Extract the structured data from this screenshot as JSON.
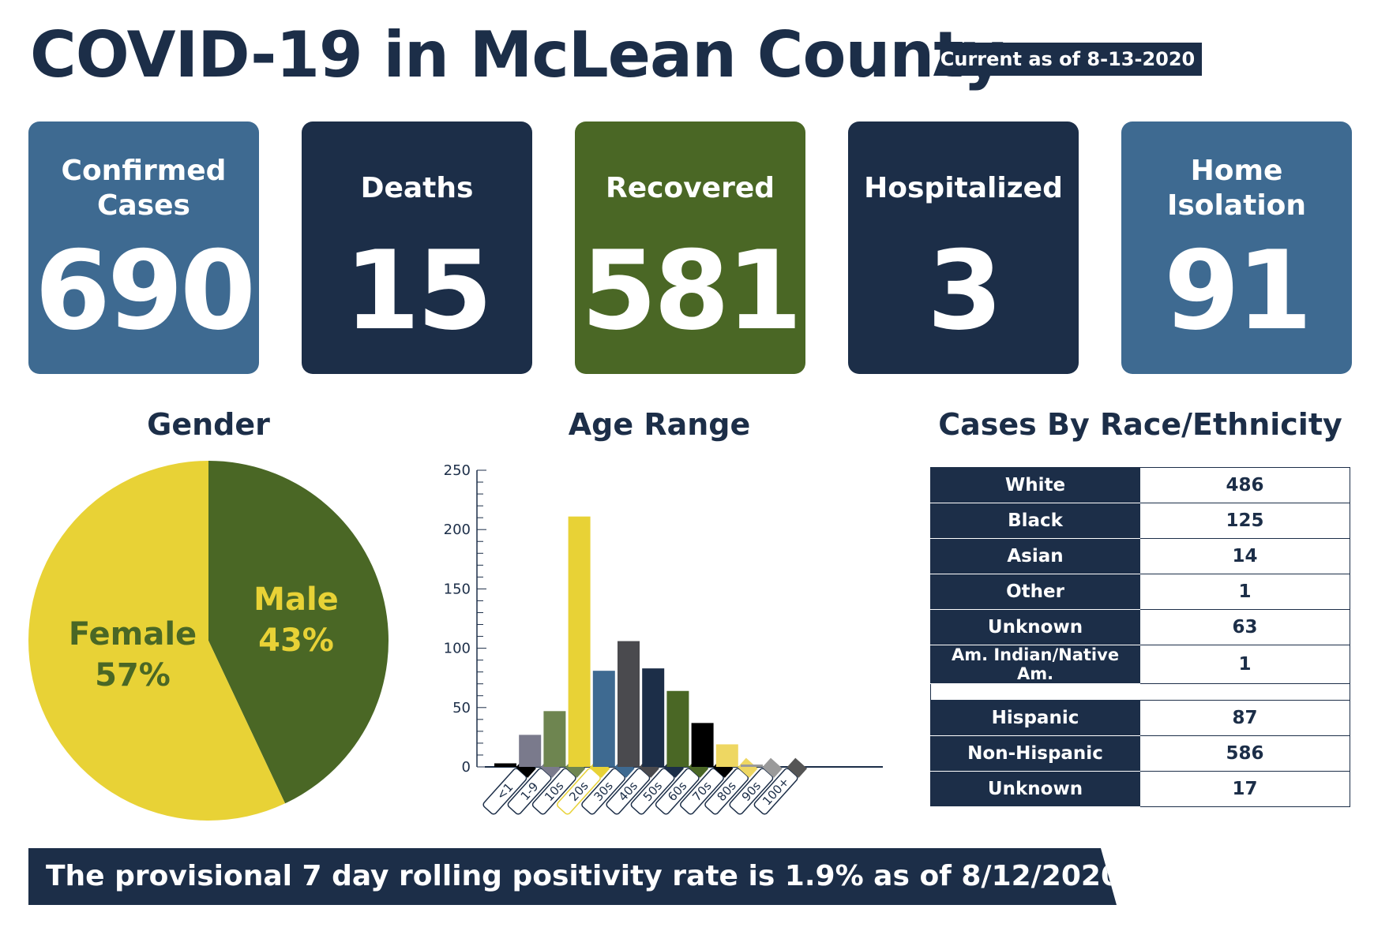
{
  "header": {
    "title": "COVID-19 in McLean County",
    "as_of": "Current as of 8-13-2020"
  },
  "stats": [
    {
      "label": "Confirmed Cases",
      "value": "690",
      "color": "#3e6a91"
    },
    {
      "label": "Deaths",
      "value": "15",
      "color": "#1c2e48"
    },
    {
      "label": "Recovered",
      "value": "581",
      "color": "#4a6725"
    },
    {
      "label": "Hospitalized",
      "value": "3",
      "color": "#1c2e48"
    },
    {
      "label": "Home Isolation",
      "value": "91",
      "color": "#3e6a91"
    }
  ],
  "gender": {
    "title": "Gender",
    "female_label": "Female",
    "female_pct": "57%",
    "male_label": "Male",
    "male_pct": "43%"
  },
  "age": {
    "title": "Age Range"
  },
  "race": {
    "title": "Cases By Race/Ethnicity",
    "rows": [
      {
        "label": "White",
        "value": "486"
      },
      {
        "label": "Black",
        "value": "125"
      },
      {
        "label": "Asian",
        "value": "14"
      },
      {
        "label": "Other",
        "value": "1"
      },
      {
        "label": "Unknown",
        "value": "63"
      },
      {
        "label": "Am. Indian/Native Am.",
        "value": "1"
      }
    ],
    "ethnicity_rows": [
      {
        "label": "Hispanic",
        "value": "87"
      },
      {
        "label": "Non-Hispanic",
        "value": "586"
      },
      {
        "label": "Unknown",
        "value": "17"
      }
    ]
  },
  "footer": {
    "text": "The provisional 7 day rolling positivity rate is 1.9% as of 8/12/2020."
  },
  "colors": {
    "navy": "#1c2e48",
    "steel_blue": "#3e6a91",
    "olive": "#4a6725",
    "yellow": "#e8d236"
  },
  "chart_data": [
    {
      "type": "pie",
      "title": "Gender",
      "labels": [
        "Female",
        "Male"
      ],
      "values": [
        57,
        43
      ],
      "colors": [
        "#e8d236",
        "#4a6725"
      ]
    },
    {
      "type": "bar",
      "title": "Age Range",
      "categories": [
        "<1",
        "1-9",
        "10s",
        "20s",
        "30s",
        "40s",
        "50s",
        "60s",
        "70s",
        "80s",
        "90s",
        "100+"
      ],
      "values": [
        3,
        27,
        47,
        211,
        81,
        106,
        83,
        64,
        37,
        19,
        2,
        0
      ],
      "colors": [
        "#000000",
        "#7a7a8c",
        "#6e8550",
        "#e8d236",
        "#3e6a91",
        "#4a4a4e",
        "#1c2e48",
        "#4a6725",
        "#000000",
        "#eed762",
        "#9a9a9a",
        "#555555"
      ],
      "ylim": [
        0,
        250
      ],
      "yticks": [
        0,
        50,
        100,
        150,
        200,
        250
      ],
      "grid": false
    }
  ]
}
